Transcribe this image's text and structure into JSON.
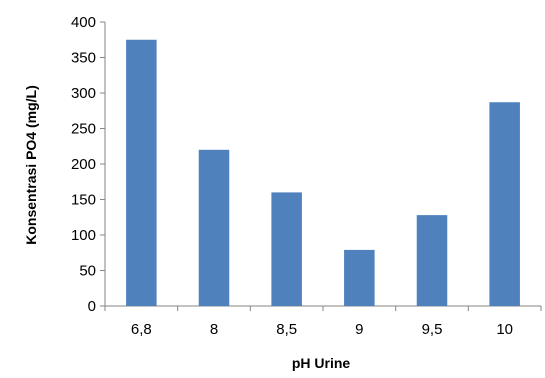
{
  "chart_data": {
    "type": "bar",
    "categories": [
      "6,8",
      "8",
      "8,5",
      "9",
      "9,5",
      "10"
    ],
    "values": [
      375,
      220,
      160,
      79,
      128,
      287
    ],
    "xlabel": "pH Urine",
    "ylabel": "Konsentrasi PO4 (mg/L)",
    "ylim": [
      0,
      400
    ],
    "yticks": [
      "0",
      "50",
      "100",
      "150",
      "200",
      "250",
      "300",
      "350",
      "400"
    ],
    "grid": false,
    "legend": "none",
    "bar_color": "#4f81bd"
  }
}
